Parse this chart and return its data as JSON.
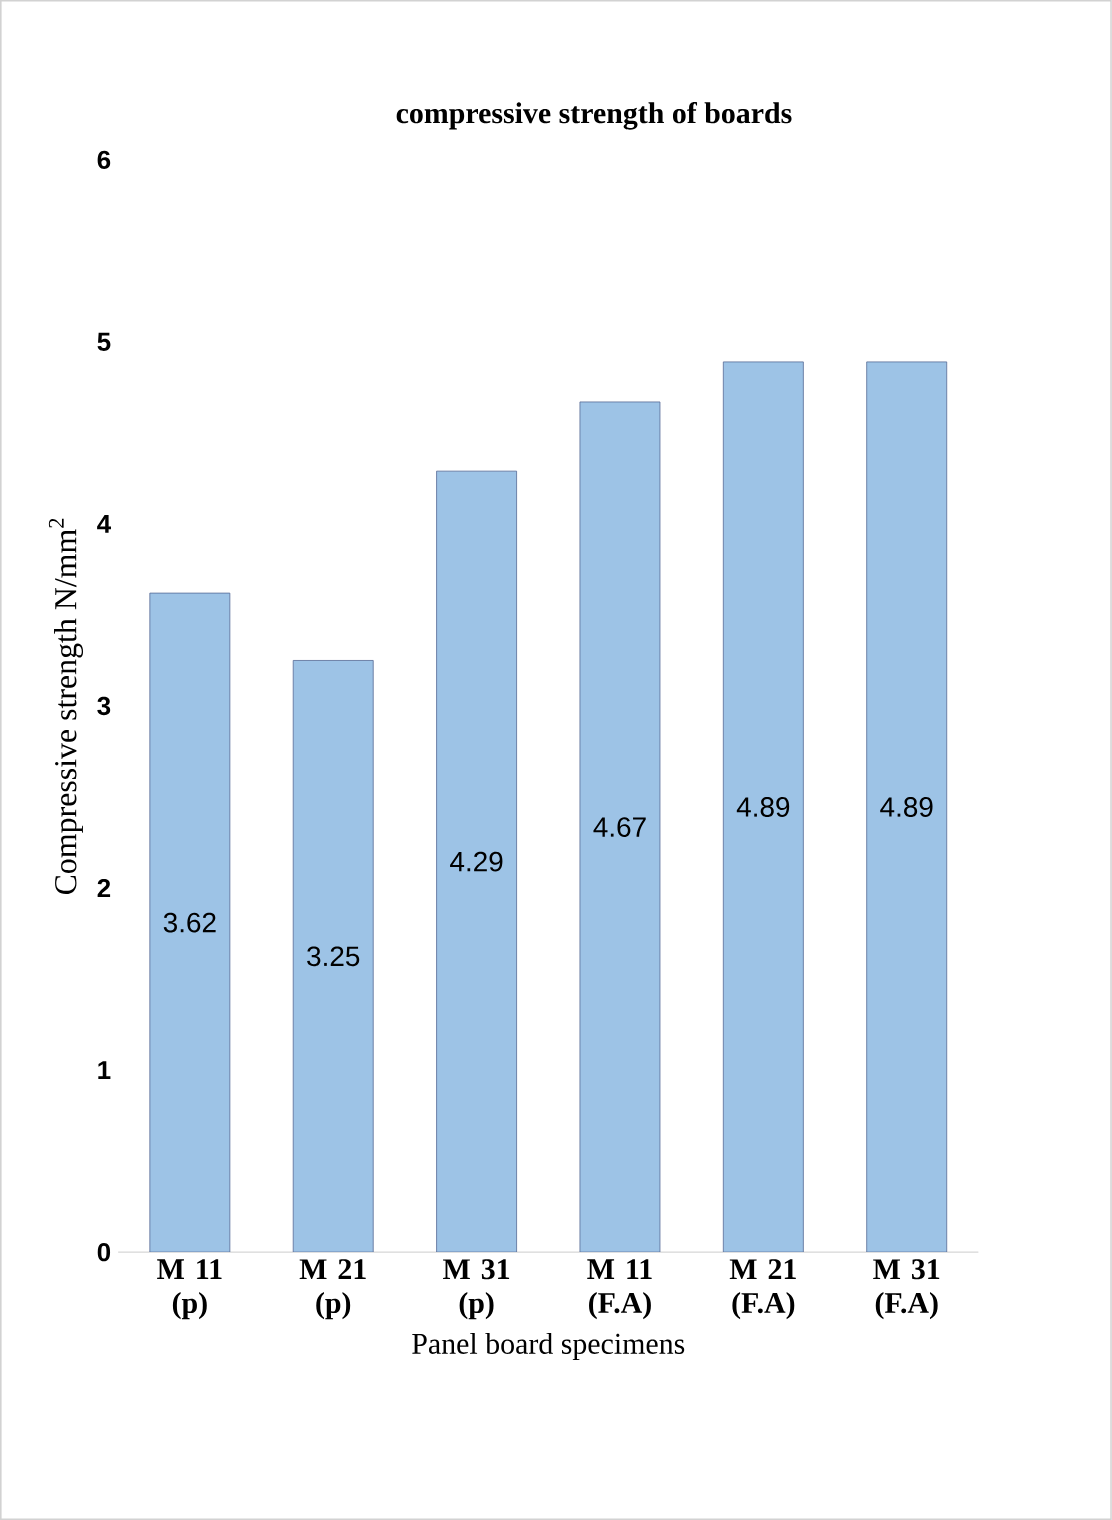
{
  "chart_data": {
    "type": "bar",
    "title": "compressive strength of boards",
    "xlabel": "Panel board specimens",
    "ylabel": "Compressive strength N/mm$^{2}$",
    "categories": [
      "M 11 (p)",
      "M 21 (p)",
      "M 31 (p)",
      "M 11 (F.A)",
      "M 21 (F.A)",
      "M 31 (F.A)"
    ],
    "values": [
      3.62,
      3.25,
      4.29,
      4.67,
      4.89,
      4.89
    ],
    "color": "#9dc3e6",
    "ylim": [
      0,
      6
    ],
    "yticks": [
      0,
      1,
      2,
      3,
      4,
      5,
      6
    ],
    "data_labels": true
  }
}
